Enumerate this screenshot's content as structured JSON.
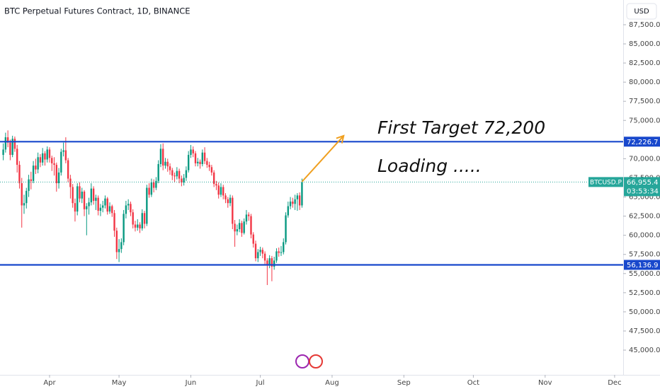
{
  "chart_data": {
    "type": "candlestick",
    "title": "BTC Perpetual Futures Contract, 1D, BINANCE",
    "currency": "USD",
    "up_color": "#089981",
    "down_color": "#f23645",
    "grid": false,
    "x": [
      0,
      1,
      2,
      3,
      4,
      5,
      6,
      7,
      8,
      9,
      10,
      11,
      12,
      13,
      14,
      15,
      16,
      17,
      18,
      19,
      20,
      21,
      22,
      23,
      24,
      25,
      26,
      27,
      28,
      29,
      30,
      31,
      32,
      33,
      34,
      35,
      36,
      37,
      38,
      39,
      40,
      41,
      42,
      43,
      44,
      45,
      46,
      47,
      48,
      49,
      50,
      51,
      52,
      53,
      54,
      55,
      56,
      57,
      58,
      59,
      60,
      61,
      62,
      63,
      64,
      65,
      66,
      67,
      68,
      69,
      70,
      71,
      72,
      73,
      74,
      75,
      76,
      77,
      78,
      79,
      80,
      81,
      82,
      83,
      84,
      85,
      86,
      87,
      88,
      89,
      90,
      91,
      92,
      93,
      94,
      95,
      96,
      97,
      98,
      99,
      100,
      101,
      102,
      103,
      104,
      105,
      106,
      107,
      108,
      109,
      110,
      111,
      112,
      113,
      114,
      115,
      116,
      117,
      118,
      119,
      120,
      121,
      122,
      123,
      124,
      125,
      126,
      127,
      128,
      129
    ],
    "ohlc": [
      [
        70500,
        72000,
        69800,
        71200
      ],
      [
        71200,
        73400,
        70800,
        72800
      ],
      [
        72800,
        73700,
        71500,
        72100
      ],
      [
        72100,
        72500,
        69800,
        70500
      ],
      [
        70500,
        73000,
        70200,
        72600
      ],
      [
        72600,
        72900,
        70900,
        71300
      ],
      [
        71300,
        71800,
        68200,
        69200
      ],
      [
        69200,
        69700,
        66100,
        66800
      ],
      [
        66800,
        67500,
        61000,
        63900
      ],
      [
        63900,
        65300,
        62800,
        64200
      ],
      [
        64200,
        66200,
        63500,
        65800
      ],
      [
        65800,
        67900,
        65000,
        67300
      ],
      [
        67300,
        68300,
        66000,
        67100
      ],
      [
        67100,
        69700,
        66800,
        69100
      ],
      [
        69100,
        70000,
        68000,
        68600
      ],
      [
        68600,
        70800,
        68100,
        70200
      ],
      [
        70200,
        70600,
        68900,
        69500
      ],
      [
        69500,
        71400,
        69100,
        70700
      ],
      [
        70700,
        71000,
        69100,
        69900
      ],
      [
        69900,
        71600,
        69500,
        71200
      ],
      [
        71200,
        71500,
        69500,
        70100
      ],
      [
        70100,
        70400,
        68400,
        69400
      ],
      [
        69400,
        70200,
        67800,
        69200
      ],
      [
        69200,
        69500,
        65700,
        66800
      ],
      [
        66800,
        68800,
        66100,
        68200
      ],
      [
        68200,
        71300,
        67800,
        70900
      ],
      [
        70900,
        72100,
        70300,
        71100
      ],
      [
        71100,
        72800,
        69400,
        69800
      ],
      [
        69800,
        70100,
        66900,
        67400
      ],
      [
        67400,
        67900,
        64800,
        66300
      ],
      [
        66300,
        66700,
        63600,
        64200
      ],
      [
        64200,
        64800,
        61800,
        63100
      ],
      [
        63100,
        66800,
        62600,
        66400
      ],
      [
        66400,
        66900,
        64300,
        64800
      ],
      [
        64800,
        66200,
        64200,
        65700
      ],
      [
        65700,
        65900,
        62500,
        63400
      ],
      [
        63400,
        64200,
        60000,
        63800
      ],
      [
        63800,
        64900,
        62700,
        64300
      ],
      [
        64300,
        66800,
        63900,
        66100
      ],
      [
        66100,
        66400,
        64000,
        64500
      ],
      [
        64500,
        65300,
        63300,
        64900
      ],
      [
        64900,
        65200,
        62600,
        63200
      ],
      [
        63200,
        64100,
        62500,
        63600
      ],
      [
        63600,
        64500,
        63000,
        63900
      ],
      [
        63900,
        65200,
        63500,
        64800
      ],
      [
        64800,
        65000,
        62700,
        63100
      ],
      [
        63100,
        64300,
        62800,
        63800
      ],
      [
        63800,
        64000,
        62400,
        62900
      ],
      [
        62900,
        63300,
        59800,
        60600
      ],
      [
        60600,
        61000,
        56900,
        57800
      ],
      [
        57800,
        59500,
        56500,
        58200
      ],
      [
        58200,
        59600,
        57700,
        59100
      ],
      [
        59100,
        63300,
        58700,
        62800
      ],
      [
        62800,
        64500,
        62200,
        63900
      ],
      [
        63900,
        64700,
        63300,
        64100
      ],
      [
        64100,
        64400,
        62500,
        63000
      ],
      [
        63000,
        63400,
        60900,
        61400
      ],
      [
        61400,
        61900,
        60500,
        61000
      ],
      [
        61000,
        62100,
        60600,
        61400
      ],
      [
        61400,
        61700,
        60300,
        60900
      ],
      [
        60900,
        63400,
        60600,
        62900
      ],
      [
        62900,
        63200,
        60900,
        61500
      ],
      [
        61500,
        66600,
        61200,
        66200
      ],
      [
        66200,
        66800,
        64900,
        65300
      ],
      [
        65300,
        67400,
        65000,
        66900
      ],
      [
        66900,
        67300,
        65600,
        66200
      ],
      [
        66200,
        67600,
        65900,
        67100
      ],
      [
        67100,
        69800,
        66800,
        69300
      ],
      [
        69300,
        71900,
        68900,
        71300
      ],
      [
        71300,
        72000,
        68500,
        69100
      ],
      [
        69100,
        70100,
        68700,
        69600
      ],
      [
        69600,
        70000,
        68300,
        69000
      ],
      [
        69000,
        69400,
        67900,
        68500
      ],
      [
        68500,
        68800,
        67200,
        67800
      ],
      [
        67800,
        68200,
        66900,
        67700
      ],
      [
        67700,
        68900,
        67300,
        68400
      ],
      [
        68400,
        68700,
        66800,
        67400
      ],
      [
        67400,
        67800,
        66400,
        66900
      ],
      [
        66900,
        68000,
        66500,
        67500
      ],
      [
        67500,
        69000,
        67100,
        68500
      ],
      [
        68500,
        71000,
        68200,
        70500
      ],
      [
        70500,
        71800,
        70100,
        71200
      ],
      [
        71200,
        71600,
        70200,
        70700
      ],
      [
        70700,
        71000,
        69000,
        69400
      ],
      [
        69400,
        70100,
        69000,
        69600
      ],
      [
        69600,
        69900,
        68700,
        69300
      ],
      [
        69300,
        71200,
        69000,
        70800
      ],
      [
        70800,
        71500,
        69300,
        69700
      ],
      [
        69700,
        70100,
        68800,
        69200
      ],
      [
        69200,
        69600,
        68400,
        68900
      ],
      [
        68900,
        69200,
        67800,
        68200
      ],
      [
        68200,
        68500,
        66300,
        66700
      ],
      [
        66700,
        67100,
        65900,
        66500
      ],
      [
        66500,
        66900,
        64800,
        65300
      ],
      [
        65300,
        66800,
        65000,
        66300
      ],
      [
        66300,
        66600,
        64700,
        65200
      ],
      [
        65200,
        65500,
        64200,
        64700
      ],
      [
        64700,
        65000,
        63600,
        64200
      ],
      [
        64200,
        65300,
        63800,
        64900
      ],
      [
        64900,
        65200,
        60800,
        61500
      ],
      [
        61500,
        62000,
        58500,
        60500
      ],
      [
        60500,
        61400,
        60000,
        60800
      ],
      [
        60800,
        62100,
        60400,
        61600
      ],
      [
        61600,
        61900,
        59800,
        60300
      ],
      [
        60300,
        62200,
        60100,
        61800
      ],
      [
        61800,
        63300,
        61400,
        62700
      ],
      [
        62700,
        63000,
        61900,
        62500
      ],
      [
        62500,
        62800,
        59600,
        60100
      ],
      [
        60100,
        60400,
        58400,
        58900
      ],
      [
        58900,
        59300,
        56600,
        57000
      ],
      [
        57000,
        58200,
        56500,
        57800
      ],
      [
        57800,
        58500,
        57300,
        58100
      ],
      [
        58100,
        58400,
        57000,
        57600
      ],
      [
        57600,
        57900,
        56100,
        56700
      ],
      [
        56700,
        57000,
        53500,
        56200
      ],
      [
        56200,
        57400,
        55700,
        57000
      ],
      [
        57000,
        57300,
        54000,
        55900
      ],
      [
        55900,
        57200,
        55500,
        56700
      ],
      [
        56700,
        58300,
        56400,
        57900
      ],
      [
        57900,
        58400,
        57200,
        57700
      ],
      [
        57700,
        58600,
        57300,
        57800
      ],
      [
        57800,
        59600,
        57500,
        59100
      ],
      [
        59100,
        63000,
        58800,
        62600
      ],
      [
        62600,
        64400,
        62300,
        63800
      ],
      [
        63800,
        65000,
        63400,
        64400
      ],
      [
        64400,
        64900,
        63600,
        64100
      ],
      [
        64100,
        65300,
        63300,
        64700
      ],
      [
        64700,
        65500,
        63200,
        65200
      ],
      [
        65200,
        65600,
        63300,
        63900
      ],
      [
        63900,
        67400,
        63600,
        66955.4
      ]
    ],
    "xlim": [
      -1.4,
      267.7
    ],
    "xticks": [
      {
        "value": 20,
        "label": "Apr"
      },
      {
        "value": 50,
        "label": "May"
      },
      {
        "value": 81,
        "label": "Jun"
      },
      {
        "value": 111,
        "label": "Jul"
      },
      {
        "value": 142,
        "label": "Aug"
      },
      {
        "value": 173,
        "label": "Sep"
      },
      {
        "value": 203,
        "label": "Oct"
      },
      {
        "value": 234,
        "label": "Nov"
      },
      {
        "value": 264,
        "label": "Dec"
      }
    ],
    "ylim": [
      41770,
      90730
    ],
    "yticks": [
      {
        "value": 45000,
        "label": "45,000.0"
      },
      {
        "value": 47500,
        "label": "47,500.0"
      },
      {
        "value": 50000,
        "label": "50,000.0"
      },
      {
        "value": 52500,
        "label": "52,500.0"
      },
      {
        "value": 55000,
        "label": "55,000.0"
      },
      {
        "value": 57500,
        "label": "57,500.0"
      },
      {
        "value": 60000,
        "label": "60,000.0"
      },
      {
        "value": 62500,
        "label": "62,500.0"
      },
      {
        "value": 65000,
        "label": "65,000.0"
      },
      {
        "value": 67500,
        "label": "67,500.0"
      },
      {
        "value": 70000,
        "label": "70,000.0"
      },
      {
        "value": 72500,
        "label": "72,500.0"
      },
      {
        "value": 75000,
        "label": "75,000.0"
      },
      {
        "value": 77500,
        "label": "77,500.0"
      },
      {
        "value": 80000,
        "label": "80,000.0"
      },
      {
        "value": 82500,
        "label": "82,500.0"
      },
      {
        "value": 85000,
        "label": "85,000.0"
      },
      {
        "value": 87500,
        "label": "87,500.0"
      }
    ],
    "levels": [
      {
        "value": 72226.7,
        "label": "72,226.7",
        "color": "#1848cc"
      },
      {
        "value": 56136.9,
        "label": "56,136.9",
        "color": "#1848cc"
      }
    ],
    "last": {
      "value": 66955.4,
      "label": "66,955.4",
      "symbol": "BTCUSD.P",
      "countdown": "03:53:34",
      "color": "#26a69a"
    },
    "arrow": {
      "x": [
        129,
        147
      ],
      "y": [
        67000,
        73000
      ],
      "color": "#f0a020"
    },
    "annotations": [
      "First Target 72,200",
      "Loading ....."
    ]
  }
}
